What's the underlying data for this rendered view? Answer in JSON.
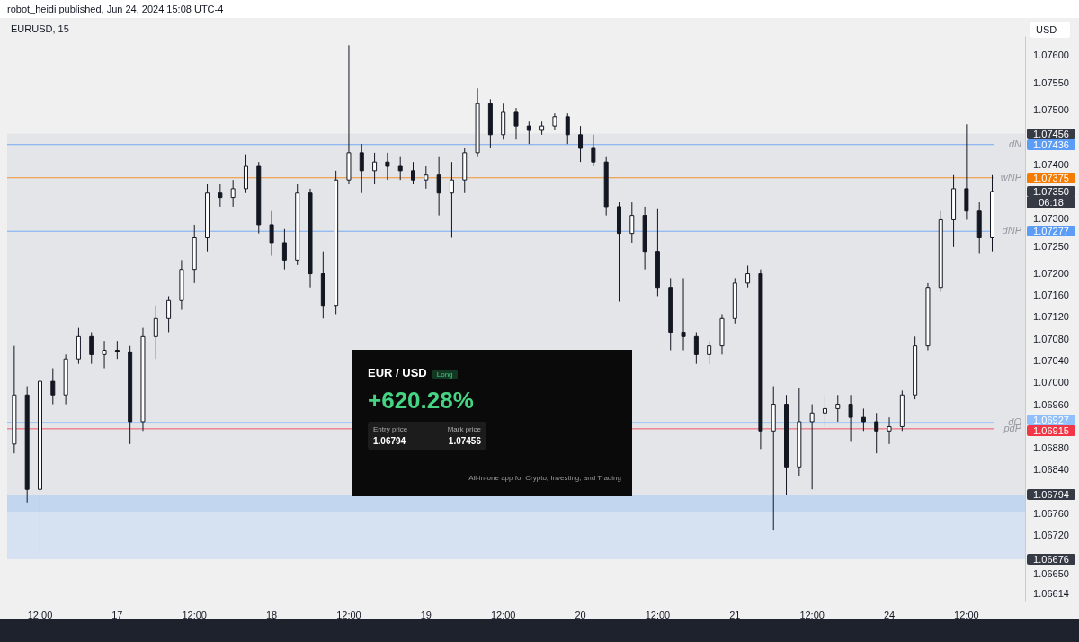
{
  "chart_data": {
    "type": "candlestick",
    "title": "EURUSD, 15",
    "subtitle": "robot_heidi published, Jun 24, 2024 15:08 UTC-4",
    "ylabel": "USD",
    "color": "#131722",
    "categories": [
      null,
      null,
      "12:00",
      null,
      null,
      null,
      null,
      null,
      "17",
      null,
      null,
      null,
      null,
      null,
      "12:00",
      null,
      null,
      null,
      null,
      null,
      "18",
      null,
      null,
      null,
      null,
      null,
      "12:00",
      null,
      null,
      null,
      null,
      null,
      "19",
      null,
      null,
      null,
      null,
      null,
      "12:00",
      null,
      null,
      null,
      null,
      null,
      "20",
      null,
      null,
      null,
      null,
      null,
      "12:00",
      null,
      null,
      null,
      null,
      null,
      "21",
      null,
      null,
      null,
      null,
      null,
      "12:00",
      null,
      null,
      null,
      null,
      null,
      "24",
      null,
      null,
      null,
      null,
      null,
      "12:00",
      null,
      null,
      null,
      null
    ],
    "ohlc": [
      [
        1.06887,
        1.07067,
        1.0687,
        1.06977
      ],
      [
        1.06977,
        1.06993,
        1.0678,
        1.06804
      ],
      [
        1.06804,
        1.07018,
        1.06684,
        1.07002
      ],
      [
        1.07002,
        1.07026,
        1.0696,
        1.06977
      ],
      [
        1.06977,
        1.07051,
        1.0696,
        1.07043
      ],
      [
        1.07043,
        1.071,
        1.07034,
        1.07084
      ],
      [
        1.07084,
        1.07092,
        1.07034,
        1.07051
      ],
      [
        1.07051,
        1.07076,
        1.07026,
        1.07059
      ],
      [
        1.07059,
        1.07076,
        1.07043,
        1.07056
      ],
      [
        1.07056,
        1.07067,
        1.06887,
        1.06928
      ],
      [
        1.06928,
        1.071,
        1.06911,
        1.07084
      ],
      [
        1.07084,
        1.07141,
        1.07043,
        1.07117
      ],
      [
        1.07117,
        1.07158,
        1.07092,
        1.0715
      ],
      [
        1.0715,
        1.07224,
        1.07133,
        1.07207
      ],
      [
        1.07207,
        1.07289,
        1.07182,
        1.07265
      ],
      [
        1.07265,
        1.07363,
        1.0724,
        1.07347
      ],
      [
        1.07347,
        1.07363,
        1.07322,
        1.07339
      ],
      [
        1.07339,
        1.07371,
        1.07322,
        1.07355
      ],
      [
        1.07355,
        1.07418,
        1.07347,
        1.07396
      ],
      [
        1.07396,
        1.07404,
        1.07273,
        1.07289
      ],
      [
        1.07289,
        1.07314,
        1.07232,
        1.07256
      ],
      [
        1.07256,
        1.07281,
        1.07207,
        1.07224
      ],
      [
        1.07224,
        1.07363,
        1.07215,
        1.07347
      ],
      [
        1.07347,
        1.07355,
        1.07174,
        1.07199
      ],
      [
        1.07199,
        1.0724,
        1.07117,
        1.07141
      ],
      [
        1.07141,
        1.07388,
        1.07125,
        1.07371
      ],
      [
        1.07371,
        1.07618,
        1.07363,
        1.07421
      ],
      [
        1.07421,
        1.07437,
        1.07347,
        1.07388
      ],
      [
        1.07388,
        1.07421,
        1.07363,
        1.07404
      ],
      [
        1.07404,
        1.07421,
        1.07371,
        1.07396
      ],
      [
        1.07396,
        1.07413,
        1.07371,
        1.07388
      ],
      [
        1.07388,
        1.07404,
        1.07363,
        1.07371
      ],
      [
        1.07371,
        1.07396,
        1.07355,
        1.0738
      ],
      [
        1.0738,
        1.07413,
        1.07306,
        1.07347
      ],
      [
        1.07347,
        1.07404,
        1.07265,
        1.07371
      ],
      [
        1.07371,
        1.07429,
        1.07347,
        1.07421
      ],
      [
        1.07421,
        1.07539,
        1.07413,
        1.07511
      ],
      [
        1.07511,
        1.07519,
        1.07429,
        1.07454
      ],
      [
        1.07454,
        1.07511,
        1.07445,
        1.07495
      ],
      [
        1.07495,
        1.07503,
        1.07445,
        1.0747
      ],
      [
        1.0747,
        1.07478,
        1.07437,
        1.07462
      ],
      [
        1.07462,
        1.07478,
        1.07454,
        1.0747
      ],
      [
        1.0747,
        1.07493,
        1.07462,
        1.07487
      ],
      [
        1.07487,
        1.07493,
        1.07437,
        1.07454
      ],
      [
        1.07454,
        1.0747,
        1.07404,
        1.07429
      ],
      [
        1.07429,
        1.07454,
        1.07396,
        1.07404
      ],
      [
        1.07404,
        1.07413,
        1.07306,
        1.07322
      ],
      [
        1.07322,
        1.0733,
        1.07148,
        1.07273
      ],
      [
        1.07273,
        1.0733,
        1.07256,
        1.07306
      ],
      [
        1.07306,
        1.07322,
        1.07207,
        1.0724
      ],
      [
        1.0724,
        1.07319,
        1.07158,
        1.07174
      ],
      [
        1.07174,
        1.07191,
        1.07059,
        1.07092
      ],
      [
        1.07092,
        1.07191,
        1.07059,
        1.07084
      ],
      [
        1.07084,
        1.07092,
        1.07034,
        1.07051
      ],
      [
        1.07051,
        1.07076,
        1.07034,
        1.07067
      ],
      [
        1.07067,
        1.07125,
        1.07051,
        1.07117
      ],
      [
        1.07117,
        1.07191,
        1.07108,
        1.07182
      ],
      [
        1.07182,
        1.07214,
        1.07174,
        1.07199
      ],
      [
        1.07199,
        1.07207,
        1.06878,
        1.06911
      ],
      [
        1.06911,
        1.06993,
        1.0673,
        1.0696
      ],
      [
        1.0696,
        1.06977,
        1.06793,
        1.06845
      ],
      [
        1.06845,
        1.0699,
        1.06829,
        1.06928
      ],
      [
        1.06928,
        1.0696,
        1.06804,
        1.06944
      ],
      [
        1.06944,
        1.06977,
        1.06919,
        1.06952
      ],
      [
        1.06952,
        1.06977,
        1.06928,
        1.0696
      ],
      [
        1.0696,
        1.06977,
        1.06891,
        1.06936
      ],
      [
        1.06936,
        1.06952,
        1.06911,
        1.06928
      ],
      [
        1.06928,
        1.06944,
        1.0687,
        1.06911
      ],
      [
        1.06911,
        1.06936,
        1.06887,
        1.06919
      ],
      [
        1.06919,
        1.06985,
        1.06911,
        1.06977
      ],
      [
        1.06977,
        1.07084,
        1.06969,
        1.07067
      ],
      [
        1.07067,
        1.07182,
        1.07059,
        1.07174
      ],
      [
        1.07174,
        1.07314,
        1.07166,
        1.07298
      ],
      [
        1.07298,
        1.0738,
        1.07248,
        1.07355
      ],
      [
        1.07355,
        1.07473,
        1.07298,
        1.07314
      ],
      [
        1.07314,
        1.0733,
        1.07237,
        1.07265
      ],
      [
        1.07265,
        1.0738,
        1.0724,
        1.0735
      ],
      null,
      null
    ],
    "ylim": [
      1.066,
      1.07635
    ],
    "yticks": [
      {
        "value": 1.076,
        "label": "1.07600"
      },
      {
        "value": 1.0755,
        "label": "1.07550"
      },
      {
        "value": 1.075,
        "label": "1.07500"
      },
      {
        "value": 1.07456,
        "label": "1.07456"
      },
      {
        "value": 1.07436,
        "label": "1.07436"
      },
      {
        "value": 1.074,
        "label": "1.07400"
      },
      {
        "value": 1.07375,
        "label": "1.07375"
      },
      {
        "value": 1.0735,
        "label": "1.07350"
      },
      {
        "value": 1.073,
        "label": "1.07300"
      },
      {
        "value": 1.07277,
        "label": "1.07277"
      },
      {
        "value": 1.0725,
        "label": "1.07250"
      },
      {
        "value": 1.072,
        "label": "1.07200"
      },
      {
        "value": 1.0716,
        "label": "1.07160"
      },
      {
        "value": 1.0712,
        "label": "1.07120"
      },
      {
        "value": 1.0708,
        "label": "1.07080"
      },
      {
        "value": 1.0704,
        "label": "1.07040"
      },
      {
        "value": 1.07,
        "label": "1.07000"
      },
      {
        "value": 1.0696,
        "label": "1.06960"
      },
      {
        "value": 1.06927,
        "label": "1.06927"
      },
      {
        "value": 1.06915,
        "label": "1.06915"
      },
      {
        "value": 1.0688,
        "label": "1.06880"
      },
      {
        "value": 1.0684,
        "label": "1.06840"
      },
      {
        "value": 1.06794,
        "label": "1.06794"
      },
      {
        "value": 1.0676,
        "label": "1.06760"
      },
      {
        "value": 1.0672,
        "label": "1.06720"
      },
      {
        "value": 1.06676,
        "label": "1.06676"
      },
      {
        "value": 1.0665,
        "label": "1.06650"
      },
      1.06614
    ],
    "ref_lines": [
      {
        "axis": "y",
        "value": 1.07436,
        "label": "dN",
        "color": "#5b9cf6"
      },
      {
        "axis": "y",
        "value": 1.07375,
        "label": "wNP",
        "color": "#f57c00"
      },
      {
        "axis": "y",
        "value": 1.07277,
        "label": "dNP",
        "color": "#5b9cf6"
      },
      {
        "axis": "y",
        "value": 1.06927,
        "label": "dO",
        "color": "#90bff9"
      },
      {
        "axis": "y",
        "value": 1.06915,
        "label": "pdP",
        "color": "#f23645"
      }
    ],
    "bands": [
      {
        "axis": "y",
        "from": 1.06794,
        "to": 1.07456,
        "color": "#e4e5e8"
      },
      {
        "axis": "y",
        "from": 1.06676,
        "to": 1.06794,
        "color": "#c3d6f0"
      },
      {
        "axis": "y",
        "from": 1.06676,
        "to": 1.06763,
        "color": "#d6e2f2"
      }
    ],
    "annotations": [
      "EUR / USD",
      "Long",
      "+620.28%",
      "Entry price",
      "1.06794",
      "Mark price",
      "1.07456",
      "All-in-one app for Crypto, Investing, and Trading",
      "06:18"
    ]
  }
}
